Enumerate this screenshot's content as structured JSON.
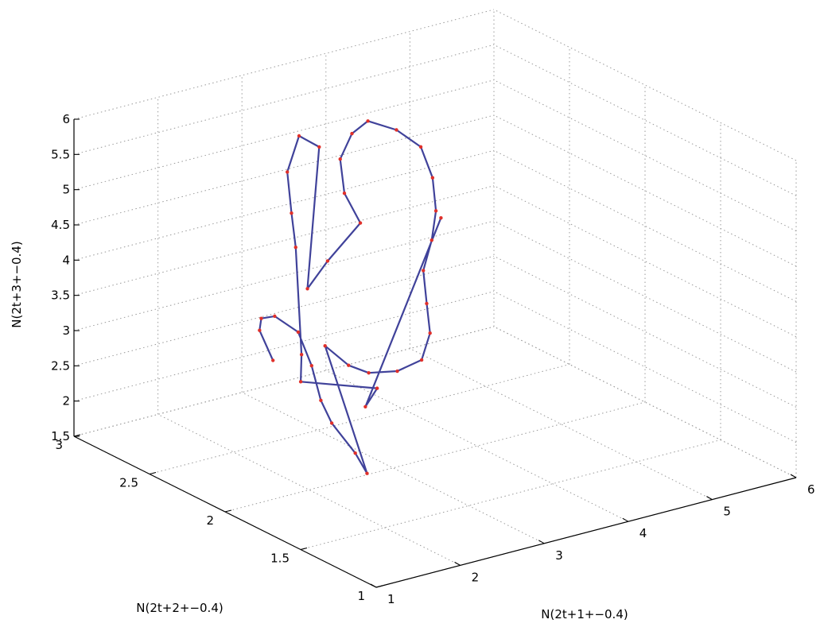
{
  "chart_data": {
    "type": "scatter",
    "title": "",
    "xlabel": "N(2t+1+−0.4)",
    "ylabel": "N(2t+2+−0.4)",
    "zlabel": "N(2t+3+−0.4)",
    "xlim": [
      1,
      6
    ],
    "ylim": [
      1,
      3
    ],
    "zlim": [
      1.5,
      6
    ],
    "x_ticks": [
      "1",
      "2",
      "3",
      "4",
      "5",
      "6"
    ],
    "y_ticks": [
      "1",
      "1.5",
      "2",
      "2.5",
      "3"
    ],
    "z_ticks": [
      "1.5",
      "2",
      "2.5",
      "3",
      "3.5",
      "4",
      "4.5",
      "5",
      "5.5",
      "6"
    ],
    "grid": true,
    "projection": "3d",
    "colors": {
      "trajectory": "#2b2e8f",
      "points": "#e0302a",
      "grid": "#9a9a9a"
    },
    "series": [
      {
        "marker": "dot",
        "points": [
          [
            2.2,
            2.35,
            2.9
          ],
          [
            2.4,
            2.55,
            3.05
          ],
          [
            2.6,
            2.65,
            3.05
          ],
          [
            2.85,
            2.7,
            2.95
          ],
          [
            2.95,
            2.6,
            2.8
          ],
          [
            2.75,
            2.4,
            2.6
          ],
          [
            2.5,
            2.2,
            2.4
          ],
          [
            2.45,
            2.1,
            2.2
          ],
          [
            2.55,
            2.0,
            1.85
          ],
          [
            2.6,
            1.95,
            1.6
          ],
          [
            3.0,
            2.45,
            2.75
          ],
          [
            3.1,
            2.35,
            2.55
          ],
          [
            3.25,
            2.3,
            2.45
          ],
          [
            3.5,
            2.25,
            2.45
          ],
          [
            3.7,
            2.2,
            2.6
          ],
          [
            3.8,
            2.2,
            2.95
          ],
          [
            3.85,
            2.25,
            3.3
          ],
          [
            3.9,
            2.3,
            3.7
          ],
          [
            4.0,
            2.3,
            4.1
          ],
          [
            4.05,
            2.3,
            4.5
          ],
          [
            4.1,
            2.35,
            4.9
          ],
          [
            4.05,
            2.4,
            5.3
          ],
          [
            3.85,
            2.45,
            5.55
          ],
          [
            3.6,
            2.5,
            5.7
          ],
          [
            3.5,
            2.55,
            5.5
          ],
          [
            3.45,
            2.6,
            5.1
          ],
          [
            3.5,
            2.6,
            4.6
          ],
          [
            3.6,
            2.55,
            4.2
          ],
          [
            3.3,
            2.6,
            3.7
          ],
          [
            3.15,
            2.65,
            3.3
          ],
          [
            3.2,
            2.6,
            5.35
          ],
          [
            3.05,
            2.65,
            5.5
          ],
          [
            3.0,
            2.7,
            4.95
          ],
          [
            3.05,
            2.7,
            4.35
          ],
          [
            3.1,
            2.7,
            3.85
          ],
          [
            2.9,
            2.55,
            2.55
          ],
          [
            2.8,
            2.5,
            2.25
          ],
          [
            3.35,
            2.3,
            2.2
          ],
          [
            3.3,
            2.35,
            1.9
          ],
          [
            4.2,
            2.35,
            4.3
          ]
        ]
      }
    ]
  }
}
